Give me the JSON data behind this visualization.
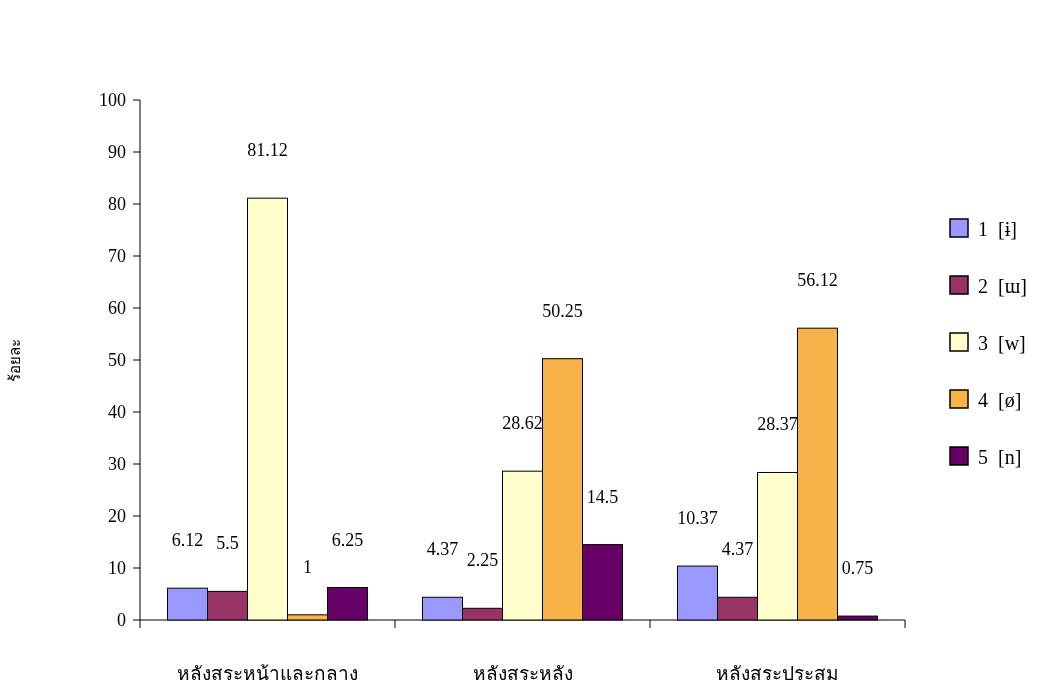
{
  "chart_data": {
    "type": "bar",
    "ylabel": "ร้อยละ",
    "categories": [
      "หลังสระหน้าและกลาง",
      "หลังสระหลัง",
      "หลังสระประสม"
    ],
    "series": [
      {
        "name": "1  [ɨ]",
        "color": "#9999ff",
        "values": [
          6.12,
          4.37,
          10.37
        ]
      },
      {
        "name": "2  [ɯ]",
        "color": "#993366",
        "values": [
          5.5,
          2.25,
          4.37
        ]
      },
      {
        "name": "3  [w]",
        "color": "#ffffcc",
        "values": [
          81.12,
          28.62,
          28.37
        ]
      },
      {
        "name": "4  [ø]",
        "color": "#f7b24a",
        "values": [
          1,
          50.25,
          56.12
        ]
      },
      {
        "name": "5  [n]",
        "color": "#660066",
        "values": [
          6.25,
          14.5,
          0.75
        ]
      }
    ],
    "ylim": [
      0,
      100
    ],
    "yticks": [
      0,
      10,
      20,
      30,
      40,
      50,
      60,
      70,
      80,
      90,
      100
    ],
    "data_labels": true,
    "legend": "right",
    "grid": false
  }
}
